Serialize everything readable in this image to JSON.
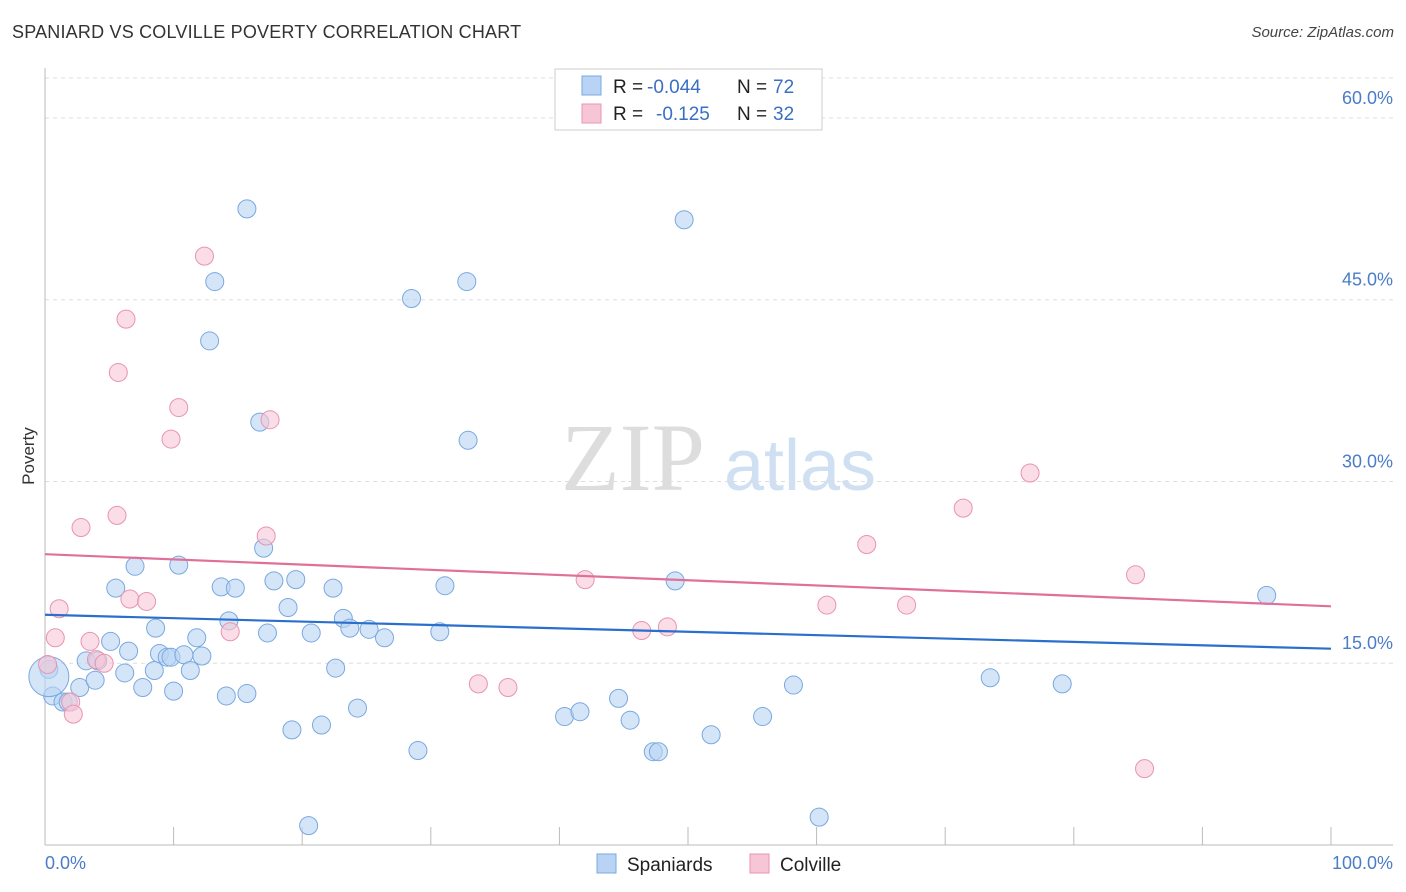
{
  "title": "SPANIARD VS COLVILLE POVERTY CORRELATION CHART",
  "source": "Source: ZipAtlas.com",
  "watermark": {
    "zip": "ZIP",
    "atlas": "atlas"
  },
  "colors": {
    "spaniards_fill": "#b8d3f4",
    "spaniards_stroke": "#7aa8e0",
    "spaniards_line": "#2b6fcc",
    "colville_fill": "#f7c6d6",
    "colville_stroke": "#e894b0",
    "colville_line": "#e0709a",
    "tick_label": "#4a7cc9"
  },
  "legend": {
    "rows": [
      {
        "r_label": "R =",
        "r_value": "-0.044",
        "n_label": "N =",
        "n_value": "72"
      },
      {
        "r_label": "R =",
        "r_value": "-0.125",
        "n_label": "N =",
        "n_value": "32"
      }
    ]
  },
  "bottom_legend": [
    "Spaniards",
    "Colville"
  ],
  "chart_data": {
    "type": "scatter",
    "xlabel": "",
    "ylabel": "Poverty",
    "xlim": [
      0,
      100
    ],
    "ylim": [
      0,
      60
    ],
    "x_tick_labels": [
      "0.0%",
      "100.0%"
    ],
    "y_ticks": [
      15,
      30,
      45,
      60
    ],
    "y_tick_labels": [
      "15.0%",
      "30.0%",
      "45.0%",
      "60.0%"
    ],
    "grid": true,
    "series": [
      {
        "name": "Spaniards",
        "r": -0.044,
        "n": 72,
        "trend": {
          "x": [
            0,
            100
          ],
          "y": [
            19.0,
            16.2
          ]
        },
        "points": [
          [
            0.3,
            14.5
          ],
          [
            0.6,
            12.3
          ],
          [
            1.4,
            11.8
          ],
          [
            1.8,
            11.8
          ],
          [
            2.7,
            13.0
          ],
          [
            3.2,
            15.2
          ],
          [
            3.9,
            13.6
          ],
          [
            4.1,
            15.2
          ],
          [
            5.1,
            16.8
          ],
          [
            5.5,
            21.2
          ],
          [
            6.2,
            14.2
          ],
          [
            6.5,
            16.0
          ],
          [
            7.0,
            23.0
          ],
          [
            7.6,
            13.0
          ],
          [
            8.5,
            14.4
          ],
          [
            8.6,
            17.9
          ],
          [
            8.9,
            15.8
          ],
          [
            9.5,
            15.5
          ],
          [
            9.8,
            15.5
          ],
          [
            10.0,
            12.7
          ],
          [
            10.4,
            23.1
          ],
          [
            10.8,
            15.7
          ],
          [
            11.3,
            14.4
          ],
          [
            11.8,
            17.1
          ],
          [
            12.2,
            15.6
          ],
          [
            12.8,
            41.6
          ],
          [
            13.2,
            46.5
          ],
          [
            13.7,
            21.3
          ],
          [
            14.1,
            12.3
          ],
          [
            14.3,
            18.5
          ],
          [
            14.8,
            21.2
          ],
          [
            15.7,
            12.5
          ],
          [
            15.7,
            52.5
          ],
          [
            16.7,
            34.9
          ],
          [
            17.0,
            24.5
          ],
          [
            17.3,
            17.5
          ],
          [
            17.8,
            21.8
          ],
          [
            18.9,
            19.6
          ],
          [
            19.2,
            9.5
          ],
          [
            19.5,
            21.9
          ],
          [
            20.5,
            1.6
          ],
          [
            20.7,
            17.5
          ],
          [
            21.5,
            9.9
          ],
          [
            22.4,
            21.2
          ],
          [
            22.6,
            14.6
          ],
          [
            23.2,
            18.7
          ],
          [
            23.7,
            17.9
          ],
          [
            24.3,
            11.3
          ],
          [
            25.2,
            17.8
          ],
          [
            26.4,
            17.1
          ],
          [
            28.5,
            45.1
          ],
          [
            29.0,
            7.8
          ],
          [
            30.7,
            17.6
          ],
          [
            31.1,
            21.4
          ],
          [
            32.8,
            46.5
          ],
          [
            32.9,
            33.4
          ],
          [
            40.4,
            10.6
          ],
          [
            41.6,
            11.0
          ],
          [
            44.6,
            12.1
          ],
          [
            45.5,
            10.3
          ],
          [
            47.3,
            7.7
          ],
          [
            47.7,
            7.7
          ],
          [
            49.0,
            21.8
          ],
          [
            49.7,
            51.6
          ],
          [
            51.8,
            9.1
          ],
          [
            55.8,
            10.6
          ],
          [
            58.2,
            13.2
          ],
          [
            60.2,
            2.3
          ],
          [
            73.5,
            13.8
          ],
          [
            79.1,
            13.3
          ],
          [
            95.0,
            20.6
          ],
          [
            0.3,
            13.9
          ]
        ]
      },
      {
        "name": "Colville",
        "r": -0.125,
        "n": 32,
        "trend": {
          "x": [
            0,
            100
          ],
          "y": [
            24.0,
            19.7
          ]
        },
        "points": [
          [
            0.8,
            17.1
          ],
          [
            1.1,
            19.5
          ],
          [
            2.0,
            11.8
          ],
          [
            2.2,
            10.8
          ],
          [
            2.8,
            26.2
          ],
          [
            3.5,
            16.8
          ],
          [
            4.0,
            15.3
          ],
          [
            4.6,
            15.0
          ],
          [
            5.6,
            27.2
          ],
          [
            5.7,
            39.0
          ],
          [
            6.3,
            43.4
          ],
          [
            6.6,
            20.3
          ],
          [
            7.9,
            20.1
          ],
          [
            9.8,
            33.5
          ],
          [
            10.4,
            36.1
          ],
          [
            12.4,
            48.6
          ],
          [
            14.4,
            17.6
          ],
          [
            17.2,
            25.5
          ],
          [
            17.5,
            35.1
          ],
          [
            33.7,
            13.3
          ],
          [
            36.0,
            13.0
          ],
          [
            42.0,
            21.9
          ],
          [
            46.4,
            17.7
          ],
          [
            48.4,
            18.0
          ],
          [
            60.8,
            19.8
          ],
          [
            63.9,
            24.8
          ],
          [
            67.0,
            19.8
          ],
          [
            71.4,
            27.8
          ],
          [
            76.6,
            30.7
          ],
          [
            84.8,
            22.3
          ],
          [
            85.5,
            6.3
          ],
          [
            0.2,
            14.9
          ]
        ]
      }
    ]
  }
}
